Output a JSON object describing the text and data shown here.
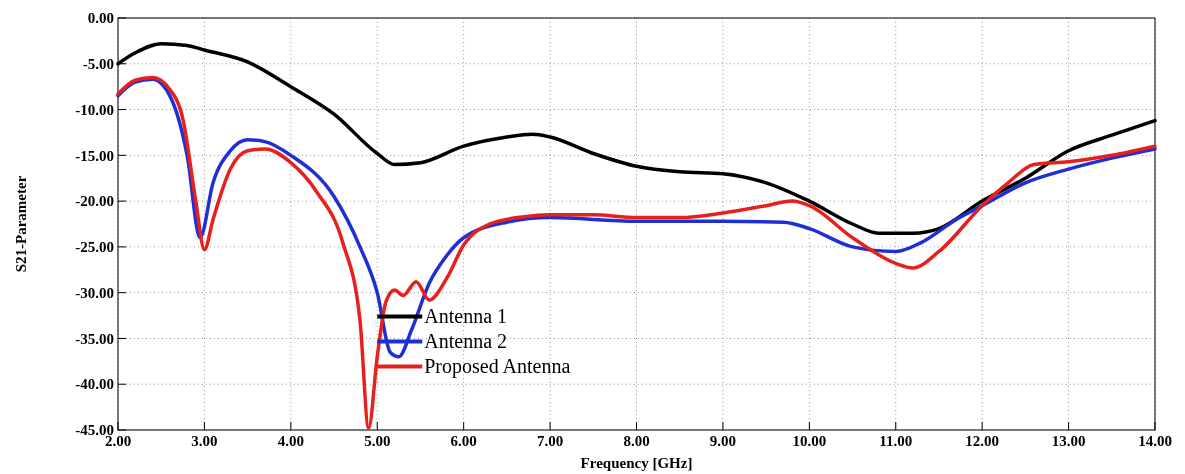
{
  "chart_data": {
    "type": "line",
    "xlabel": "Frequency [GHz]",
    "ylabel": "S21-Parameter",
    "xlim": [
      2,
      14
    ],
    "ylim": [
      -45,
      0
    ],
    "xticks": [
      {
        "value": 2,
        "label": "2.00"
      },
      {
        "value": 3,
        "label": "3.00"
      },
      {
        "value": 4,
        "label": "4.00"
      },
      {
        "value": 5,
        "label": "5.00"
      },
      {
        "value": 6,
        "label": "6.00"
      },
      {
        "value": 7,
        "label": "7.00"
      },
      {
        "value": 8,
        "label": "8.00"
      },
      {
        "value": 9,
        "label": "9.00"
      },
      {
        "value": 10,
        "label": "10.00"
      },
      {
        "value": 11,
        "label": "11.00"
      },
      {
        "value": 12,
        "label": "12.00"
      },
      {
        "value": 13,
        "label": "13.00"
      },
      {
        "value": 14,
        "label": "14.00"
      }
    ],
    "yticks": [
      {
        "value": 0,
        "label": "0.00"
      },
      {
        "value": -5,
        "label": "-5.00"
      },
      {
        "value": -10,
        "label": "-10.00"
      },
      {
        "value": -15,
        "label": "-15.00"
      },
      {
        "value": -20,
        "label": "-20.00"
      },
      {
        "value": -25,
        "label": "-25.00"
      },
      {
        "value": -30,
        "label": "-30.00"
      },
      {
        "value": -35,
        "label": "-35.00"
      },
      {
        "value": -40,
        "label": "-40.00"
      },
      {
        "value": -45,
        "label": "-45.00"
      }
    ],
    "grid": true,
    "legend": "bottom",
    "line_style": "solid",
    "marker": "none",
    "series": [
      {
        "name": "Antenna 1",
        "color": "#000000",
        "x": [
          2,
          2.2,
          2.5,
          2.8,
          3,
          3.5,
          4,
          4.5,
          5,
          5.2,
          5.5,
          6,
          6.5,
          6.8,
          7,
          7.5,
          8,
          8.5,
          9,
          9.5,
          10,
          10.5,
          10.8,
          11.2,
          11.5,
          12,
          12.5,
          13,
          13.5,
          14
        ],
        "values": [
          -5,
          -3.8,
          -2.8,
          -3,
          -3.5,
          -4.8,
          -7.5,
          -10.5,
          -14.8,
          -16,
          -15.8,
          -14,
          -13,
          -12.7,
          -13,
          -14.8,
          -16.2,
          -16.8,
          -17,
          -18,
          -20,
          -22.5,
          -23.5,
          -23.5,
          -23,
          -20,
          -17.5,
          -14.5,
          -12.8,
          -11.2
        ]
      },
      {
        "name": "Antenna 2",
        "color": "#1f2fd6",
        "x": [
          2,
          2.2,
          2.4,
          2.6,
          2.8,
          2.95,
          3.1,
          3.3,
          3.5,
          3.7,
          4,
          4.5,
          4.8,
          5,
          5.15,
          5.25,
          5.4,
          5.6,
          5.8,
          6,
          6.5,
          7,
          8,
          9,
          9.7,
          10,
          10.5,
          11,
          11.3,
          11.7,
          12,
          12.5,
          13,
          13.5,
          14
        ],
        "values": [
          -8.5,
          -7,
          -6.7,
          -8.5,
          -15,
          -24,
          -18,
          -14.5,
          -13.3,
          -13.5,
          -15,
          -19.5,
          -25,
          -30,
          -36.5,
          -37,
          -34,
          -29,
          -26,
          -24,
          -22.3,
          -21.8,
          -22.2,
          -22.2,
          -22.3,
          -23,
          -25,
          -25.5,
          -24.5,
          -22,
          -20.5,
          -18,
          -16.5,
          -15.3,
          -14.3
        ]
      },
      {
        "name": "Proposed Antenna",
        "color": "#e8201c",
        "x": [
          2,
          2.2,
          2.4,
          2.6,
          2.75,
          2.9,
          3,
          3.1,
          3.3,
          3.5,
          3.7,
          4,
          4.3,
          4.6,
          4.8,
          4.9,
          5,
          5.1,
          5.2,
          5.3,
          5.45,
          5.6,
          5.8,
          6,
          6.3,
          6.7,
          7,
          7.5,
          8,
          8.5,
          9,
          9.5,
          9.8,
          10,
          10.5,
          11,
          11.2,
          11.5,
          12,
          12.3,
          12.6,
          13,
          13.5,
          14
        ],
        "values": [
          -8.3,
          -6.8,
          -6.5,
          -7.8,
          -11,
          -20,
          -25.3,
          -22,
          -16.5,
          -14.5,
          -14.3,
          -15.8,
          -19,
          -24.5,
          -33,
          -44.8,
          -37,
          -31,
          -29.7,
          -30.3,
          -28.8,
          -30.8,
          -28.5,
          -24.8,
          -22.5,
          -21.7,
          -21.5,
          -21.5,
          -21.8,
          -21.8,
          -21.3,
          -20.5,
          -20,
          -20.5,
          -24,
          -26.8,
          -27.3,
          -25.5,
          -20.5,
          -18,
          -16,
          -15.7,
          -15,
          -14
        ]
      }
    ]
  }
}
